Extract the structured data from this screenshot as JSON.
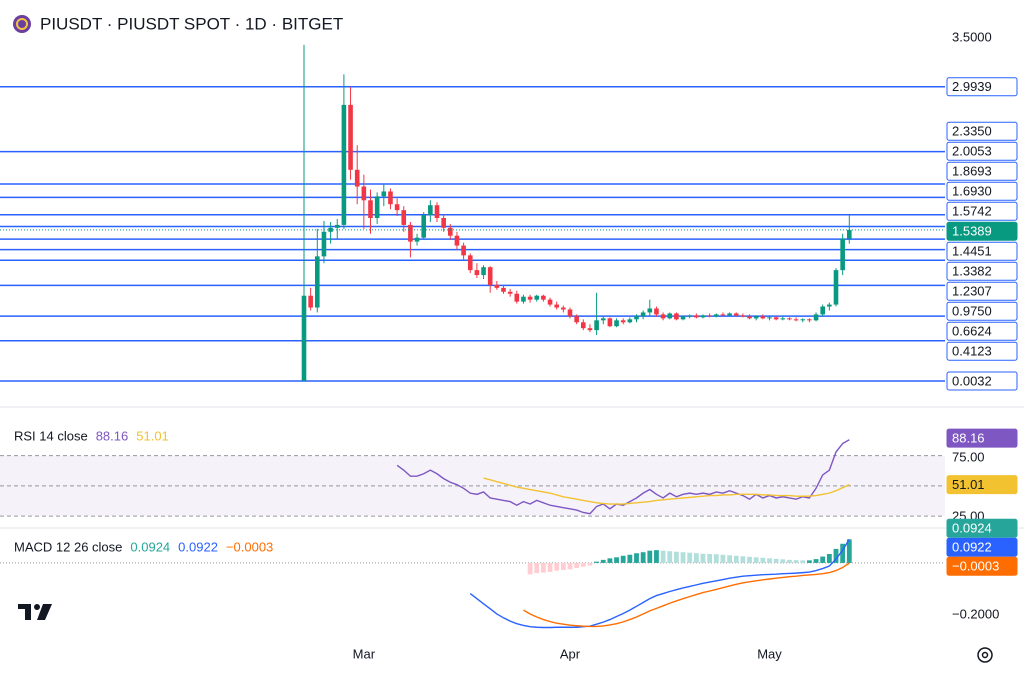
{
  "chart_data": {
    "type": "candlestick",
    "title": "PIUSDT · PIUSDT SPOT · 1D · BITGET",
    "up_color": "#089981",
    "down_color": "#f23645",
    "level_color": "#2962ff",
    "ylim": [
      -0.19,
      3.876
    ],
    "yticks": [
      {
        "value": 3.5,
        "label": "3.5000"
      }
    ],
    "levels": [
      2.9939,
      {
        "value": 2.335,
        "label": "2.3350"
      },
      2.0053,
      1.8693,
      {
        "value": 1.693,
        "label": "1.6930"
      },
      1.5742,
      1.4451,
      1.3382,
      1.2307,
      {
        "value": 0.975,
        "label": "0.9750"
      },
      0.6624,
      0.4123,
      0.0032
    ],
    "categories": [
      null,
      null,
      null,
      null,
      null,
      null,
      null,
      null,
      null,
      "Mar",
      null,
      null,
      null,
      null,
      null,
      null,
      null,
      null,
      null,
      null,
      null,
      null,
      null,
      null,
      null,
      null,
      null,
      null,
      null,
      null,
      null,
      null,
      null,
      null,
      null,
      null,
      null,
      null,
      null,
      null,
      "Apr",
      null,
      null,
      null,
      null,
      null,
      null,
      null,
      null,
      null,
      null,
      null,
      null,
      null,
      null,
      null,
      null,
      null,
      null,
      null,
      null,
      null,
      null,
      null,
      null,
      null,
      null,
      null,
      null,
      null,
      "May",
      null,
      null,
      null,
      null,
      null,
      null,
      null,
      null,
      null,
      null,
      null,
      null
    ],
    "values": [
      [
        0.0032,
        3.42,
        0.0032,
        0.87
      ],
      [
        0.87,
        0.95,
        0.72,
        0.75
      ],
      [
        0.75,
        1.55,
        0.7,
        1.27
      ],
      [
        1.27,
        1.63,
        1.2,
        1.52
      ],
      [
        1.52,
        1.62,
        1.4,
        1.56
      ],
      [
        1.56,
        1.65,
        1.45,
        1.59
      ],
      [
        1.59,
        3.12,
        1.55,
        2.81
      ],
      [
        2.81,
        2.99,
        2.05,
        2.15
      ],
      [
        2.15,
        2.4,
        1.8,
        1.98
      ],
      [
        1.98,
        2.1,
        1.55,
        1.84
      ],
      [
        1.84,
        1.95,
        1.5,
        1.66
      ],
      [
        1.66,
        1.92,
        1.6,
        1.88
      ],
      [
        1.88,
        2.0,
        1.78,
        1.93
      ],
      [
        1.93,
        1.96,
        1.75,
        1.8
      ],
      [
        1.8,
        1.86,
        1.68,
        1.74
      ],
      [
        1.74,
        1.78,
        1.52,
        1.59
      ],
      [
        1.59,
        1.62,
        1.26,
        1.42
      ],
      [
        1.42,
        1.5,
        1.38,
        1.46
      ],
      [
        1.46,
        1.72,
        1.44,
        1.69
      ],
      [
        1.69,
        1.84,
        1.62,
        1.79
      ],
      [
        1.79,
        1.82,
        1.62,
        1.66
      ],
      [
        1.66,
        1.7,
        1.52,
        1.56
      ],
      [
        1.56,
        1.6,
        1.44,
        1.48
      ],
      [
        1.48,
        1.52,
        1.34,
        1.38
      ],
      [
        1.38,
        1.41,
        1.24,
        1.28
      ],
      [
        1.28,
        1.3,
        1.1,
        1.13
      ],
      [
        1.13,
        1.2,
        1.05,
        1.08
      ],
      [
        1.08,
        1.18,
        1.04,
        1.16
      ],
      [
        1.16,
        1.17,
        0.9,
        0.98
      ],
      [
        0.98,
        1.02,
        0.93,
        0.95
      ],
      [
        0.95,
        0.98,
        0.89,
        0.91
      ],
      [
        0.91,
        0.94,
        0.86,
        0.89
      ],
      [
        0.89,
        0.92,
        0.79,
        0.81
      ],
      [
        0.81,
        0.88,
        0.79,
        0.86
      ],
      [
        0.86,
        0.88,
        0.8,
        0.83
      ],
      [
        0.83,
        0.88,
        0.81,
        0.87
      ],
      [
        0.87,
        0.88,
        0.81,
        0.83
      ],
      [
        0.83,
        0.85,
        0.76,
        0.78
      ],
      [
        0.78,
        0.81,
        0.73,
        0.75
      ],
      [
        0.75,
        0.77,
        0.7,
        0.73
      ],
      [
        0.73,
        0.75,
        0.64,
        0.66
      ],
      [
        0.66,
        0.68,
        0.58,
        0.6
      ],
      [
        0.6,
        0.63,
        0.52,
        0.54
      ],
      [
        0.54,
        0.58,
        0.5,
        0.52
      ],
      [
        0.52,
        0.9,
        0.47,
        0.62
      ],
      [
        0.62,
        0.66,
        0.58,
        0.64
      ],
      [
        0.64,
        0.65,
        0.55,
        0.56
      ],
      [
        0.56,
        0.64,
        0.55,
        0.62
      ],
      [
        0.62,
        0.64,
        0.58,
        0.6
      ],
      [
        0.6,
        0.65,
        0.59,
        0.63
      ],
      [
        0.63,
        0.68,
        0.6,
        0.66
      ],
      [
        0.66,
        0.72,
        0.63,
        0.7
      ],
      [
        0.7,
        0.83,
        0.66,
        0.74
      ],
      [
        0.74,
        0.76,
        0.66,
        0.68
      ],
      [
        0.68,
        0.7,
        0.62,
        0.64
      ],
      [
        0.64,
        0.7,
        0.63,
        0.69
      ],
      [
        0.69,
        0.7,
        0.62,
        0.63
      ],
      [
        0.63,
        0.67,
        0.62,
        0.66
      ],
      [
        0.66,
        0.68,
        0.64,
        0.67
      ],
      [
        0.67,
        0.69,
        0.64,
        0.65
      ],
      [
        0.65,
        0.68,
        0.64,
        0.67
      ],
      [
        0.67,
        0.69,
        0.65,
        0.66
      ],
      [
        0.66,
        0.69,
        0.65,
        0.68
      ],
      [
        0.68,
        0.7,
        0.66,
        0.67
      ],
      [
        0.67,
        0.7,
        0.66,
        0.69
      ],
      [
        0.69,
        0.7,
        0.66,
        0.67
      ],
      [
        0.67,
        0.69,
        0.65,
        0.66
      ],
      [
        0.66,
        0.68,
        0.63,
        0.64
      ],
      [
        0.64,
        0.67,
        0.62,
        0.66
      ],
      [
        0.66,
        0.68,
        0.63,
        0.64
      ],
      [
        0.64,
        0.67,
        0.62,
        0.65
      ],
      [
        0.65,
        0.66,
        0.62,
        0.63
      ],
      [
        0.63,
        0.66,
        0.62,
        0.64
      ],
      [
        0.64,
        0.65,
        0.62,
        0.63
      ],
      [
        0.63,
        0.65,
        0.61,
        0.62
      ],
      [
        0.62,
        0.64,
        0.6,
        0.63
      ],
      [
        0.63,
        0.64,
        0.6,
        0.62
      ],
      [
        0.62,
        0.7,
        0.61,
        0.68
      ],
      [
        0.68,
        0.78,
        0.66,
        0.76
      ],
      [
        0.76,
        0.8,
        0.72,
        0.78
      ],
      [
        0.78,
        1.15,
        0.76,
        1.13
      ],
      [
        1.13,
        1.5,
        1.08,
        1.45
      ],
      [
        1.45,
        1.69,
        1.4,
        1.5389
      ]
    ],
    "indicators": [
      {
        "type": "rsi",
        "title": "RSI 14 close",
        "ylim": [
          16,
          108.6
        ],
        "yticks": [
          {
            "value": 75,
            "label": "75.00"
          },
          {
            "value": 25,
            "label": "25.00"
          }
        ],
        "midline": 50,
        "band_color": "#7e57c2",
        "series": [
          {
            "color": "#7e57c2",
            "values": [
              null,
              null,
              null,
              null,
              null,
              null,
              null,
              null,
              null,
              null,
              null,
              null,
              null,
              null,
              67,
              63,
              58,
              58,
              60,
              63,
              60,
              56,
              53,
              51,
              48,
              44,
              43,
              45,
              40,
              39,
              38,
              37,
              34,
              37,
              35,
              38,
              36,
              34,
              33,
              32,
              31,
              30,
              28,
              27,
              33,
              35,
              31,
              35,
              34,
              37,
              40,
              44,
              47,
              43,
              40,
              44,
              41,
              43,
              44,
              43,
              44,
              43,
              45,
              44,
              46,
              44,
              42,
              39,
              43,
              40,
              42,
              40,
              41,
              40,
              39,
              41,
              40,
              48,
              59,
              63,
              78,
              85,
              88.16
            ]
          },
          {
            "color": "#f2c230",
            "values": [
              null,
              null,
              null,
              null,
              null,
              null,
              null,
              null,
              null,
              null,
              null,
              null,
              null,
              null,
              null,
              null,
              null,
              null,
              null,
              null,
              null,
              null,
              null,
              null,
              null,
              null,
              null,
              56.5,
              55,
              53.5,
              52,
              50.5,
              49,
              48,
              47,
              46,
              45,
              44,
              42.5,
              41,
              40,
              39,
              38,
              37,
              36,
              35.5,
              35,
              35,
              35,
              35.5,
              36,
              36.5,
              37,
              38,
              38.5,
              39,
              39.5,
              40,
              40.5,
              41,
              41.5,
              42,
              42,
              42.5,
              42.5,
              43,
              43,
              43,
              43,
              42.5,
              42.5,
              42,
              42,
              42,
              41.5,
              41.5,
              41.5,
              42,
              43,
              44,
              46,
              48.5,
              51.01
            ]
          }
        ]
      },
      {
        "type": "macd",
        "title": "MACD 12 26 close",
        "ylim": [
          -0.302,
          0.129
        ],
        "yticks": [
          {
            "value": -0.2,
            "label": "−0.2000"
          }
        ],
        "baseline": 0,
        "series": [
          {
            "color": "#26a69a",
            "colors": [
              "#26a69a",
              "#b2dfdb",
              "#ffcdd2",
              "#ff5252"
            ],
            "values": [
              null,
              null,
              null,
              null,
              null,
              null,
              null,
              null,
              null,
              null,
              null,
              null,
              null,
              null,
              null,
              null,
              null,
              null,
              null,
              null,
              null,
              null,
              null,
              null,
              null,
              null,
              null,
              null,
              null,
              null,
              null,
              null,
              null,
              null,
              -0.045,
              -0.04,
              -0.038,
              -0.035,
              -0.03,
              -0.028,
              -0.025,
              -0.02,
              -0.015,
              -0.01,
              0.005,
              0.012,
              0.018,
              0.022,
              0.028,
              0.032,
              0.038,
              0.042,
              0.048,
              0.05,
              0.048,
              0.046,
              0.044,
              0.042,
              0.04,
              0.038,
              0.036,
              0.035,
              0.034,
              0.032,
              0.03,
              0.028,
              0.026,
              0.024,
              0.022,
              0.02,
              0.018,
              0.016,
              0.014,
              0.012,
              0.011,
              0.01,
              0.01,
              0.015,
              0.025,
              0.035,
              0.055,
              0.075,
              0.0924
            ]
          },
          {
            "color": "#2962ff",
            "values": [
              null,
              null,
              null,
              null,
              null,
              null,
              null,
              null,
              null,
              null,
              null,
              null,
              null,
              null,
              null,
              null,
              null,
              null,
              null,
              null,
              null,
              null,
              null,
              null,
              null,
              -0.12,
              -0.14,
              -0.16,
              -0.18,
              -0.2,
              -0.215,
              -0.228,
              -0.238,
              -0.245,
              -0.25,
              -0.252,
              -0.253,
              -0.253,
              -0.252,
              -0.252,
              -0.252,
              -0.252,
              -0.25,
              -0.248,
              -0.24,
              -0.232,
              -0.222,
              -0.21,
              -0.198,
              -0.185,
              -0.17,
              -0.155,
              -0.14,
              -0.128,
              -0.12,
              -0.112,
              -0.105,
              -0.098,
              -0.092,
              -0.086,
              -0.08,
              -0.075,
              -0.07,
              -0.065,
              -0.06,
              -0.056,
              -0.052,
              -0.05,
              -0.048,
              -0.046,
              -0.045,
              -0.044,
              -0.042,
              -0.041,
              -0.04,
              -0.038,
              -0.036,
              -0.03,
              -0.022,
              -0.012,
              0.015,
              0.05,
              0.0922
            ]
          },
          {
            "color": "#ff6d00",
            "values": [
              null,
              null,
              null,
              null,
              null,
              null,
              null,
              null,
              null,
              null,
              null,
              null,
              null,
              null,
              null,
              null,
              null,
              null,
              null,
              null,
              null,
              null,
              null,
              null,
              null,
              null,
              null,
              null,
              null,
              null,
              null,
              null,
              null,
              -0.185,
              -0.2,
              -0.212,
              -0.222,
              -0.23,
              -0.236,
              -0.24,
              -0.244,
              -0.246,
              -0.248,
              -0.249,
              -0.249,
              -0.247,
              -0.243,
              -0.238,
              -0.231,
              -0.222,
              -0.212,
              -0.2,
              -0.188,
              -0.178,
              -0.168,
              -0.158,
              -0.149,
              -0.14,
              -0.132,
              -0.124,
              -0.116,
              -0.11,
              -0.104,
              -0.097,
              -0.09,
              -0.084,
              -0.078,
              -0.074,
              -0.07,
              -0.066,
              -0.063,
              -0.06,
              -0.057,
              -0.054,
              -0.052,
              -0.049,
              -0.047,
              -0.045,
              -0.042,
              -0.038,
              -0.03,
              -0.018,
              -0.0003
            ],
            "value_labels": [
              null,
              null,
              null,
              null,
              null,
              null,
              null,
              null,
              null,
              null,
              null,
              null,
              null,
              null,
              null,
              null,
              null,
              null,
              null,
              null,
              null,
              null,
              null,
              null,
              null,
              null,
              null,
              null,
              null,
              null,
              null,
              null,
              null,
              null,
              null,
              null,
              null,
              null,
              null,
              null,
              null,
              null,
              null,
              null,
              null,
              null,
              null,
              null,
              null,
              null,
              null,
              null,
              null,
              null,
              null,
              null,
              null,
              null,
              null,
              null,
              null,
              null,
              null,
              null,
              null,
              null,
              null,
              null,
              null,
              null,
              null,
              null,
              null,
              null,
              null,
              null,
              null,
              null,
              null,
              null,
              null,
              null,
              "−0.0003"
            ]
          }
        ]
      }
    ]
  }
}
